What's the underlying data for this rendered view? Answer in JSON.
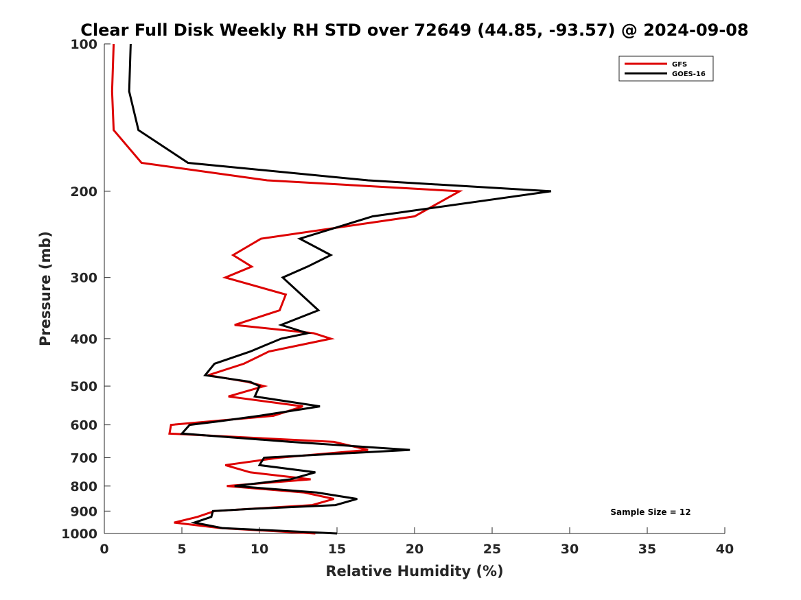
{
  "chart_data": {
    "type": "line",
    "title": "Clear Full Disk Weekly RH STD over 72649 (44.85, -93.57) @ 2024-09-08",
    "xlabel": "Relative Humidity (%)",
    "ylabel": "Pressure (mb)",
    "xlim": [
      0,
      40
    ],
    "ylim": [
      100,
      1000
    ],
    "yscale": "log",
    "y_reversed": true,
    "xticks": [
      0,
      5,
      10,
      15,
      20,
      25,
      30,
      35,
      40
    ],
    "yticks": [
      100,
      200,
      300,
      400,
      500,
      600,
      700,
      800,
      900,
      1000
    ],
    "grid": false,
    "legend": "top-right",
    "annotation": "Sample Size = 12",
    "series": [
      {
        "name": "GFS",
        "color": "#dd0000",
        "points": [
          [
            0.6,
            100
          ],
          [
            0.5,
            125
          ],
          [
            0.6,
            150
          ],
          [
            2.4,
            175
          ],
          [
            10.5,
            190
          ],
          [
            22.9,
            200
          ],
          [
            20.0,
            225
          ],
          [
            10.1,
            250
          ],
          [
            8.3,
            270
          ],
          [
            9.5,
            285
          ],
          [
            7.8,
            300
          ],
          [
            11.7,
            325
          ],
          [
            11.3,
            350
          ],
          [
            8.4,
            375
          ],
          [
            13.5,
            390
          ],
          [
            14.6,
            400
          ],
          [
            10.6,
            425
          ],
          [
            9.0,
            450
          ],
          [
            6.7,
            475
          ],
          [
            9.2,
            490
          ],
          [
            10.3,
            500
          ],
          [
            8.0,
            525
          ],
          [
            12.8,
            550
          ],
          [
            10.9,
            575
          ],
          [
            4.3,
            600
          ],
          [
            4.2,
            625
          ],
          [
            14.8,
            650
          ],
          [
            17.0,
            675
          ],
          [
            11.3,
            700
          ],
          [
            7.8,
            725
          ],
          [
            9.4,
            750
          ],
          [
            13.3,
            775
          ],
          [
            7.9,
            800
          ],
          [
            12.9,
            825
          ],
          [
            14.8,
            850
          ],
          [
            13.4,
            875
          ],
          [
            7.1,
            900
          ],
          [
            6.0,
            925
          ],
          [
            4.5,
            950
          ],
          [
            7.5,
            975
          ],
          [
            13.6,
            1000
          ]
        ]
      },
      {
        "name": "GOES-16",
        "color": "#000000",
        "points": [
          [
            1.7,
            100
          ],
          [
            1.6,
            125
          ],
          [
            2.2,
            150
          ],
          [
            5.4,
            175
          ],
          [
            17.0,
            190
          ],
          [
            28.8,
            200
          ],
          [
            17.3,
            225
          ],
          [
            12.6,
            250
          ],
          [
            14.6,
            270
          ],
          [
            13.1,
            285
          ],
          [
            11.5,
            300
          ],
          [
            13.8,
            350
          ],
          [
            11.4,
            375
          ],
          [
            13.1,
            390
          ],
          [
            11.4,
            400
          ],
          [
            9.4,
            425
          ],
          [
            7.1,
            450
          ],
          [
            6.5,
            475
          ],
          [
            9.4,
            490
          ],
          [
            10.0,
            500
          ],
          [
            9.7,
            525
          ],
          [
            13.9,
            550
          ],
          [
            10.0,
            575
          ],
          [
            7.4,
            590
          ],
          [
            5.5,
            600
          ],
          [
            5.0,
            625
          ],
          [
            12.0,
            650
          ],
          [
            19.7,
            675
          ],
          [
            10.3,
            700
          ],
          [
            10.0,
            725
          ],
          [
            13.6,
            750
          ],
          [
            12.0,
            775
          ],
          [
            8.4,
            800
          ],
          [
            13.7,
            825
          ],
          [
            16.3,
            850
          ],
          [
            14.9,
            875
          ],
          [
            9.7,
            890
          ],
          [
            7.0,
            900
          ],
          [
            6.9,
            925
          ],
          [
            5.8,
            950
          ],
          [
            7.6,
            975
          ],
          [
            15.0,
            1000
          ]
        ]
      }
    ]
  }
}
